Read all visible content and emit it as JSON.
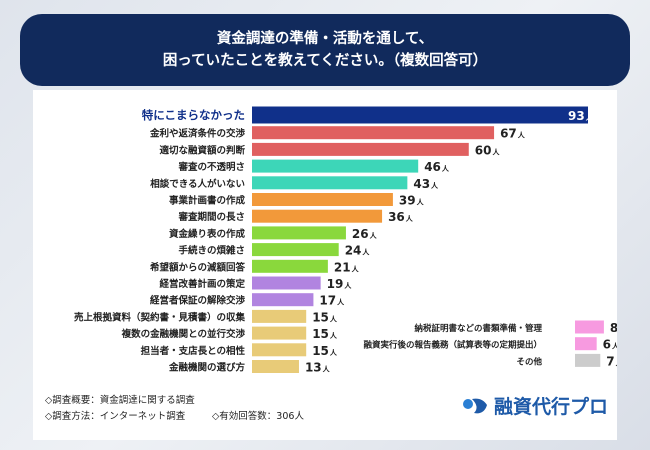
{
  "title": [
    "資金調達の準備・活動を通して、",
    "困っていたことを教えてください。（複数回答可）"
  ],
  "chart_data": {
    "type": "bar",
    "orientation": "horizontal",
    "unit": "人",
    "categories": [
      "特にこまらなかった",
      "金利や返済条件の交渉",
      "適切な融資額の判断",
      "審査の不透明さ",
      "相談できる人がいない",
      "事業計画書の作成",
      "審査期間の長さ",
      "資金繰り表の作成",
      "手続きの煩雑さ",
      "希望額からの減額回答",
      "経営改善計画の策定",
      "経営者保証の解除交渉",
      "売上根拠資料（契約書・見積書）の収集",
      "複数の金融機関との並行交渉",
      "担当者・支店長との相性",
      "金融機関の選び方",
      "納税証明書などの書類準備・管理",
      "融資実行後の報告義務（試算表等の定期提出）",
      "その他"
    ],
    "values": [
      93,
      67,
      60,
      46,
      43,
      39,
      36,
      26,
      24,
      21,
      19,
      17,
      15,
      15,
      15,
      13,
      8,
      6,
      7
    ],
    "colors": [
      "#10308a",
      "#e06060",
      "#e06060",
      "#3dd6b8",
      "#3dd6b8",
      "#f2993a",
      "#f2993a",
      "#8ad83c",
      "#8ad83c",
      "#8ad83c",
      "#b184e0",
      "#b184e0",
      "#e8cb78",
      "#e8cb78",
      "#e8cb78",
      "#e8cb78",
      "#f79ae0",
      "#f79ae0",
      "#cccccc"
    ]
  },
  "footer": {
    "line1": "◇調査概要：資金調達に関する調査",
    "line2": "◇調査方法：インターネット調査",
    "line3": "◇有効回答数：306人"
  },
  "logo": "融資代行プロ"
}
